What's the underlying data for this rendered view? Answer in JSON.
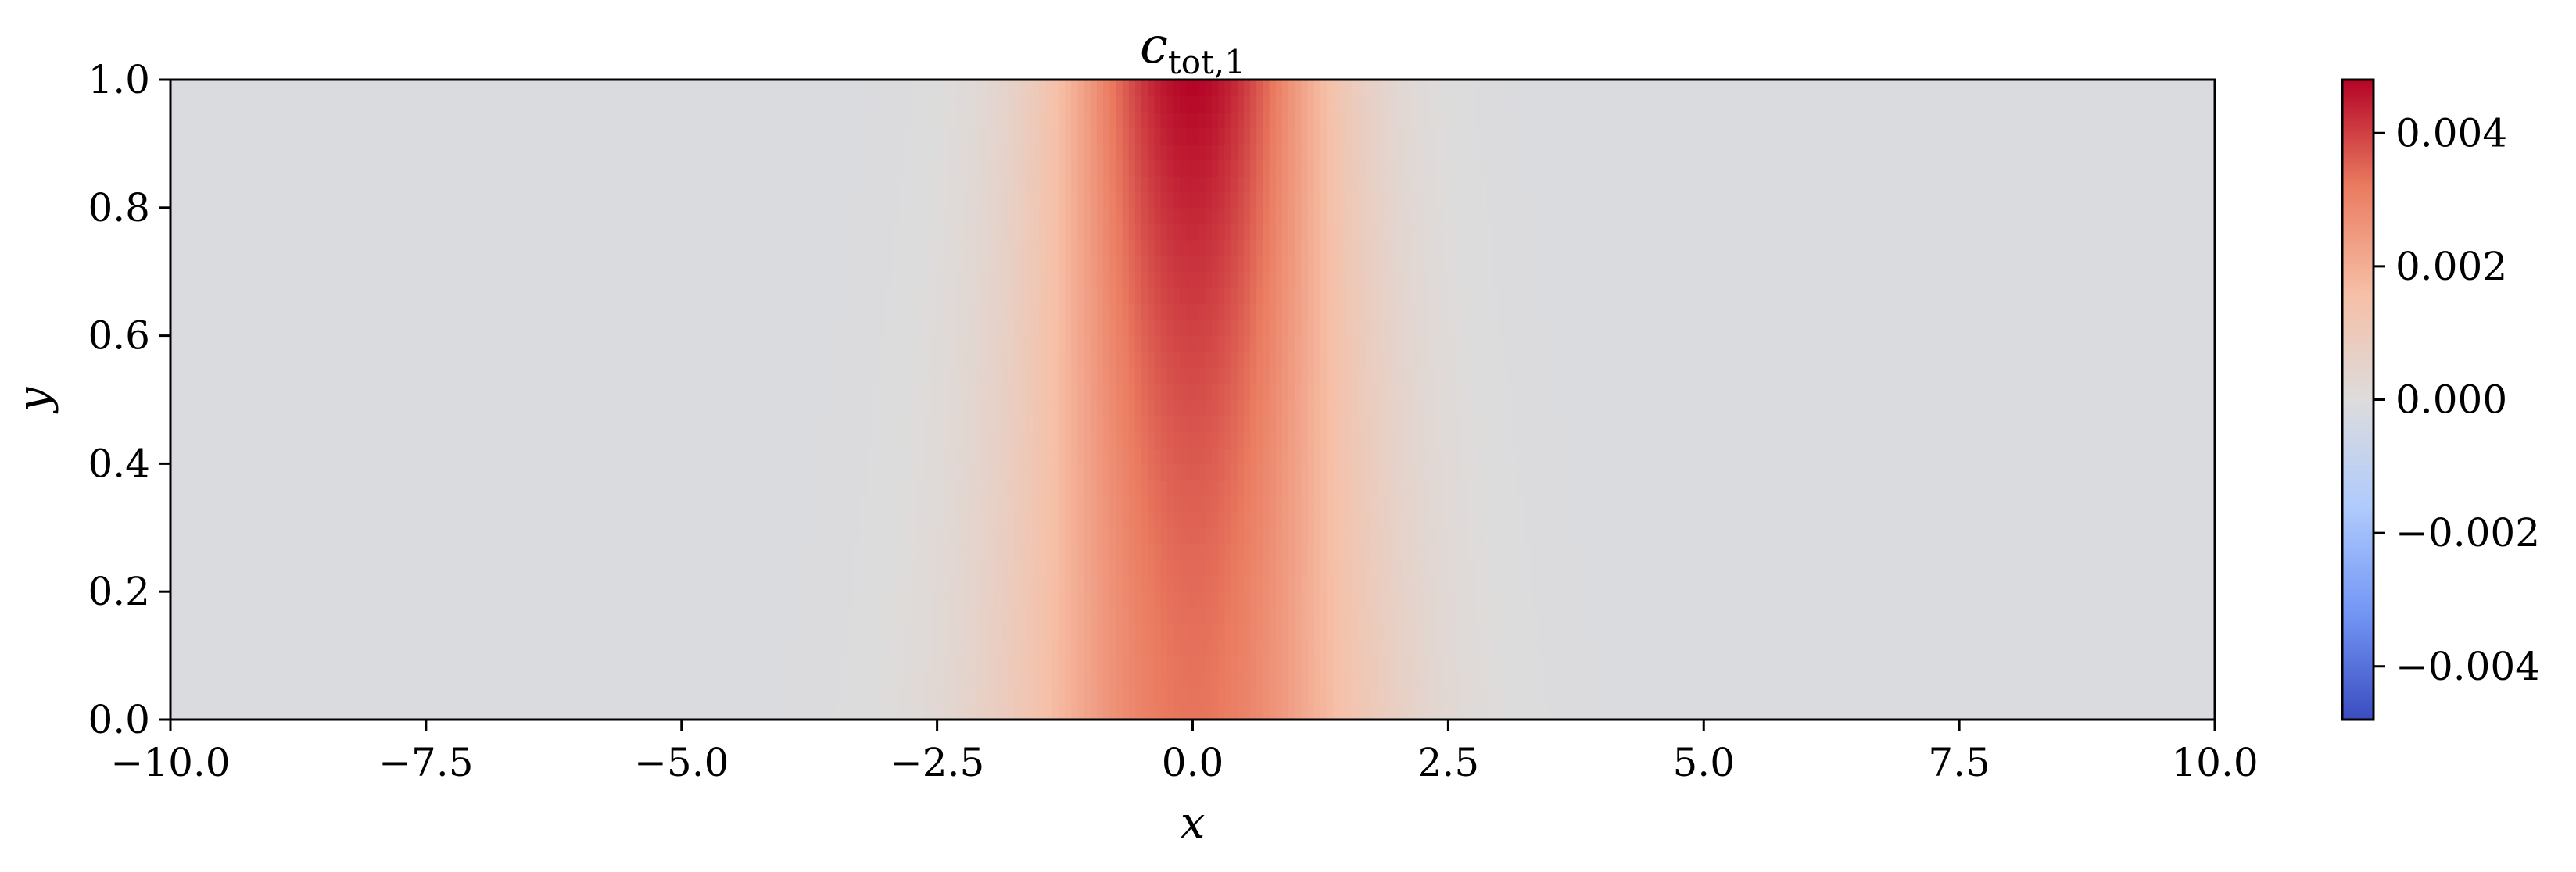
{
  "chart_data": {
    "type": "heatmap",
    "title": "c",
    "title_subscript": "tot,1",
    "xlabel": "x",
    "ylabel": "y",
    "xlim": [
      -10.0,
      10.0
    ],
    "ylim": [
      0.0,
      1.0
    ],
    "x_ticks": [
      -10.0,
      -7.5,
      -5.0,
      -2.5,
      0.0,
      2.5,
      5.0,
      7.5,
      10.0
    ],
    "x_tick_labels": [
      "−10.0",
      "−7.5",
      "−5.0",
      "−2.5",
      "0.0",
      "2.5",
      "5.0",
      "7.5",
      "10.0"
    ],
    "y_ticks": [
      0.0,
      0.2,
      0.4,
      0.6,
      0.8,
      1.0
    ],
    "y_tick_labels": [
      "0.0",
      "0.2",
      "0.4",
      "0.6",
      "0.8",
      "1.0"
    ],
    "colormap": "coolwarm",
    "colormap_stops": [
      "#3b4cc0",
      "#7396f5",
      "#b0cbfc",
      "#dddcdc",
      "#f6bfa6",
      "#ea7b60",
      "#b40426"
    ],
    "clim": [
      -0.0048,
      0.0048
    ],
    "colorbar_ticks": [
      0.004,
      0.002,
      0.0,
      -0.002,
      -0.004
    ],
    "colorbar_tick_labels": [
      "0.004",
      "0.002",
      "0.000",
      "−0.002",
      "−0.004"
    ],
    "field": {
      "description_values": "concentration peak centered at x=0, strongest at top edge",
      "peak_value_top": 0.0048,
      "peak_value_bottom": 0.0033,
      "halfwidth_top": 1.2,
      "halfwidth_bottom": 1.6,
      "background_value": -0.0001
    }
  }
}
